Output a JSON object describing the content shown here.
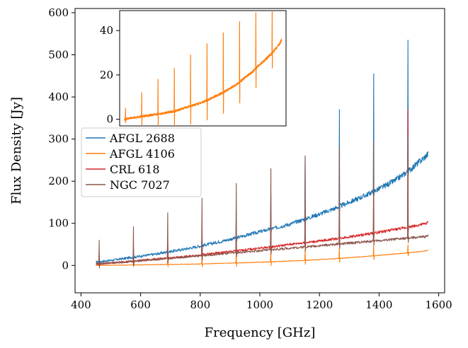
{
  "chart_data": {
    "type": "line",
    "xlabel": "Frequency [GHz]",
    "ylabel": "Flux Density [Jy]",
    "xlim": [
      380,
      1620
    ],
    "ylim": [
      -65,
      610
    ],
    "xticks": [
      400,
      600,
      800,
      1000,
      1200,
      1400,
      1600
    ],
    "yticks": [
      0,
      100,
      200,
      300,
      400,
      500,
      600
    ],
    "grid": false,
    "legend_position": "center-left",
    "line_frequencies": [
      461,
      576,
      691,
      806,
      921,
      1037,
      1152,
      1267,
      1382,
      1497
    ],
    "series": [
      {
        "name": "AFGL 2688",
        "color": "#1f77b4",
        "x": [
          450,
          500,
          550,
          600,
          650,
          700,
          750,
          800,
          850,
          900,
          950,
          1000,
          1050,
          1100,
          1150,
          1200,
          1250,
          1300,
          1350,
          1400,
          1450,
          1500,
          1550,
          1565
        ],
        "y": [
          8,
          12,
          17,
          22,
          27,
          33,
          39,
          46,
          54,
          62,
          71,
          80,
          89,
          98,
          110,
          122,
          135,
          150,
          165,
          182,
          200,
          225,
          255,
          265
        ],
        "line_peaks": [
          30,
          40,
          60,
          90,
          125,
          170,
          260,
          370,
          455,
          535
        ]
      },
      {
        "name": "AFGL 4106",
        "color": "#ff7f0e",
        "x": [
          450,
          500,
          550,
          600,
          650,
          700,
          750,
          800,
          850,
          900,
          950,
          1000,
          1050,
          1100,
          1150,
          1200,
          1250,
          1300,
          1350,
          1400,
          1450,
          1500,
          1550,
          1565
        ],
        "y": [
          0,
          0.5,
          1,
          1.5,
          2,
          2.5,
          3,
          3.5,
          4.5,
          5.5,
          6.5,
          7.5,
          9,
          10.5,
          12,
          14,
          16,
          18.5,
          21,
          24,
          27,
          30,
          34,
          36
        ],
        "line_peaks": [
          5,
          12,
          18,
          23,
          29,
          34,
          39,
          44,
          48,
          49
        ]
      },
      {
        "name": "CRL 618",
        "color": "#d62728",
        "x": [
          450,
          500,
          550,
          600,
          650,
          700,
          750,
          800,
          850,
          900,
          950,
          1000,
          1050,
          1100,
          1150,
          1200,
          1250,
          1300,
          1350,
          1400,
          1450,
          1500,
          1550,
          1565
        ],
        "y": [
          3,
          6,
          9,
          12,
          15,
          18,
          21,
          25,
          29,
          33,
          37,
          41,
          45,
          50,
          54,
          58,
          63,
          68,
          73,
          79,
          85,
          91,
          98,
          102
        ],
        "line_peaks": [
          20,
          40,
          60,
          80,
          100,
          120,
          140,
          170,
          190,
          370
        ]
      },
      {
        "name": "NGC 7027",
        "color": "#8c564b",
        "x": [
          450,
          500,
          550,
          600,
          650,
          700,
          750,
          800,
          850,
          900,
          950,
          1000,
          1050,
          1100,
          1150,
          1200,
          1250,
          1300,
          1350,
          1400,
          1450,
          1500,
          1550,
          1565
        ],
        "y": [
          4,
          6,
          8,
          11,
          14,
          17,
          20,
          23,
          26,
          29,
          32,
          35,
          38,
          41,
          44,
          47,
          50,
          53,
          56,
          59,
          62,
          65,
          68,
          70
        ],
        "line_peaks": [
          60,
          92,
          125,
          160,
          195,
          230,
          260,
          280,
          295,
          305
        ]
      }
    ],
    "inset": {
      "series": "AFGL 4106",
      "xlim": [
        420,
        1595
      ],
      "ylim": [
        -3,
        49
      ],
      "yticks": [
        0,
        20,
        40
      ]
    }
  }
}
